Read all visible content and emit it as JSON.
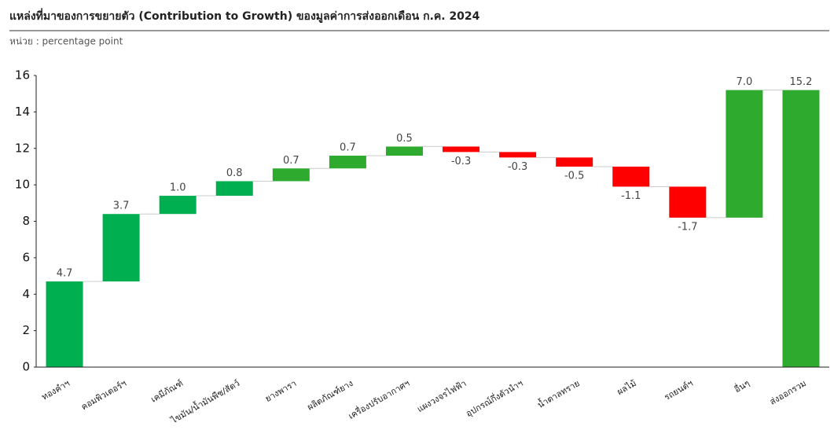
{
  "chart_data": {
    "type": "waterfall",
    "title": "แหล่งที่มาของการขยายตัว (Contribution to Growth) ของมูลค่าการส่งออกเดือน ก.ค. 2024",
    "subtitle": "หน่วย : percentage point",
    "categories": [
      "ทองคำฯ",
      "คอมพิวเตอร์ฯ",
      "เคมีภัณฑ์",
      "ไขมัน/น้ำมันพืช/สัตว์",
      "ยางพารา",
      "ผลิตภัณฑ์ยาง",
      "เครื่องปรับอากาศฯ",
      "แผงวงจรไฟฟ้า",
      "อุปกรณ์กึ่งตัวนำฯ",
      "น้ำตาลทราย",
      "ผลไม้",
      "รถยนต์ฯ",
      "อื่นๆ",
      "ส่งออกรวม"
    ],
    "values": [
      4.7,
      3.7,
      1.0,
      0.8,
      0.7,
      0.7,
      0.5,
      -0.3,
      -0.3,
      -0.5,
      -1.1,
      -1.7,
      7.0,
      15.2
    ],
    "value_labels": [
      "4.7",
      "3.7",
      "1.0",
      "0.8",
      "0.7",
      "0.7",
      "0.5",
      "-0.3",
      "-0.3",
      "-0.5",
      "-1.1",
      "-1.7",
      "7.0",
      "15.2"
    ],
    "measure": [
      "relative",
      "relative",
      "relative",
      "relative",
      "relative",
      "relative",
      "relative",
      "relative",
      "relative",
      "relative",
      "relative",
      "relative",
      "relative",
      "total"
    ],
    "colors": [
      "#00b050",
      "#00b050",
      "#00b050",
      "#00b050",
      "#2eaa2e",
      "#2eaa2e",
      "#2eaa2e",
      "#ff0000",
      "#ff0000",
      "#ff0000",
      "#ff0000",
      "#ff0000",
      "#2eaa2e",
      "#2eaa2e"
    ],
    "ylim": [
      0,
      16
    ],
    "yticks": [
      0,
      2,
      4,
      6,
      8,
      10,
      12,
      14,
      16
    ]
  }
}
